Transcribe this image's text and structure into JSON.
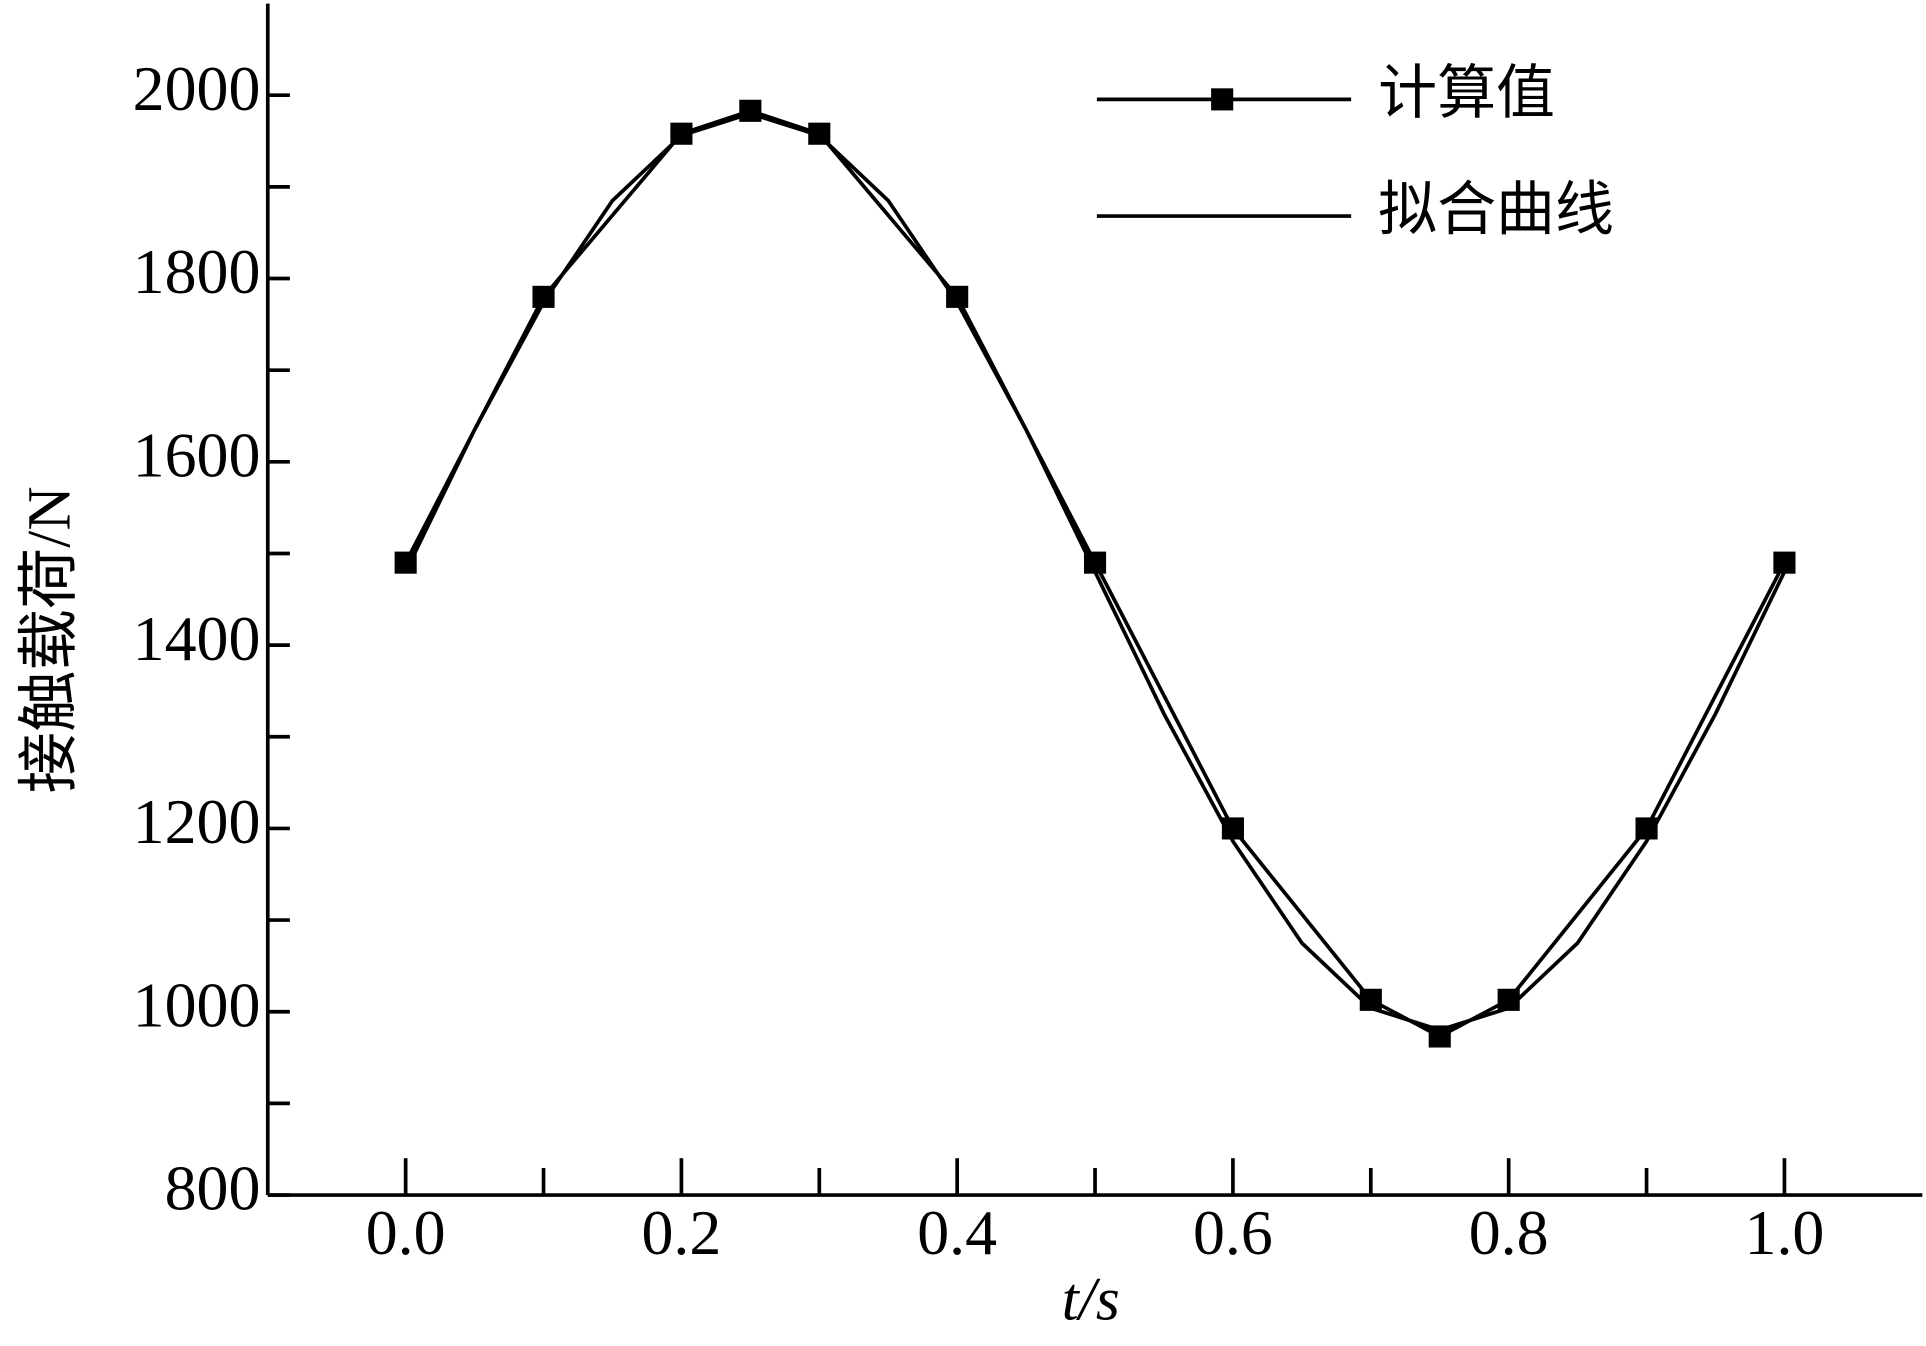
{
  "chart_data": {
    "type": "line",
    "xlabel": "t/s",
    "ylabel": "接触载荷/N",
    "xlim": [
      -0.1,
      1.1
    ],
    "ylim": [
      800,
      2100
    ],
    "xticks": [
      {
        "value": 0,
        "label": "0.0"
      },
      {
        "value": 0.2,
        "label": "0.2"
      },
      {
        "value": 0.4,
        "label": "0.4"
      },
      {
        "value": 0.6,
        "label": "0.6"
      },
      {
        "value": 0.8,
        "label": "0.8"
      },
      {
        "value": 1,
        "label": "1.0"
      }
    ],
    "xminor_ticks": [
      0.1,
      0.3,
      0.5,
      0.7,
      0.9
    ],
    "yticks": [
      800,
      1000,
      1200,
      1400,
      1600,
      1800,
      2000
    ],
    "yminor_ticks": [
      900,
      1100,
      1300,
      1500,
      1700,
      1900
    ],
    "legend": "upper right",
    "series": [
      {
        "name": "计算值",
        "color": "#000000",
        "marker": "square",
        "x": [
          0,
          0.1,
          0.2,
          0.25,
          0.3,
          0.4,
          0.5,
          0.6,
          0.7,
          0.75,
          0.8,
          0.9,
          1.0
        ],
        "values": [
          1490,
          1780,
          1958,
          1983,
          1958,
          1780,
          1490,
          1200,
          1013,
          973,
          1013,
          1200,
          1490
        ]
      },
      {
        "name": "拟合曲线",
        "color": "#000000",
        "x": [
          0,
          0.05,
          0.1,
          0.15,
          0.2,
          0.25,
          0.3,
          0.35,
          0.4,
          0.45,
          0.5,
          0.55,
          0.6,
          0.65,
          0.7,
          0.75,
          0.8,
          0.85,
          0.9,
          0.95,
          1.0
        ],
        "values": [
          1480,
          1635,
          1774,
          1885,
          1956,
          1980,
          1956,
          1885,
          1774,
          1635,
          1480,
          1325,
          1186,
          1075,
          1004,
          980,
          1004,
          1075,
          1186,
          1325,
          1480
        ]
      }
    ]
  }
}
